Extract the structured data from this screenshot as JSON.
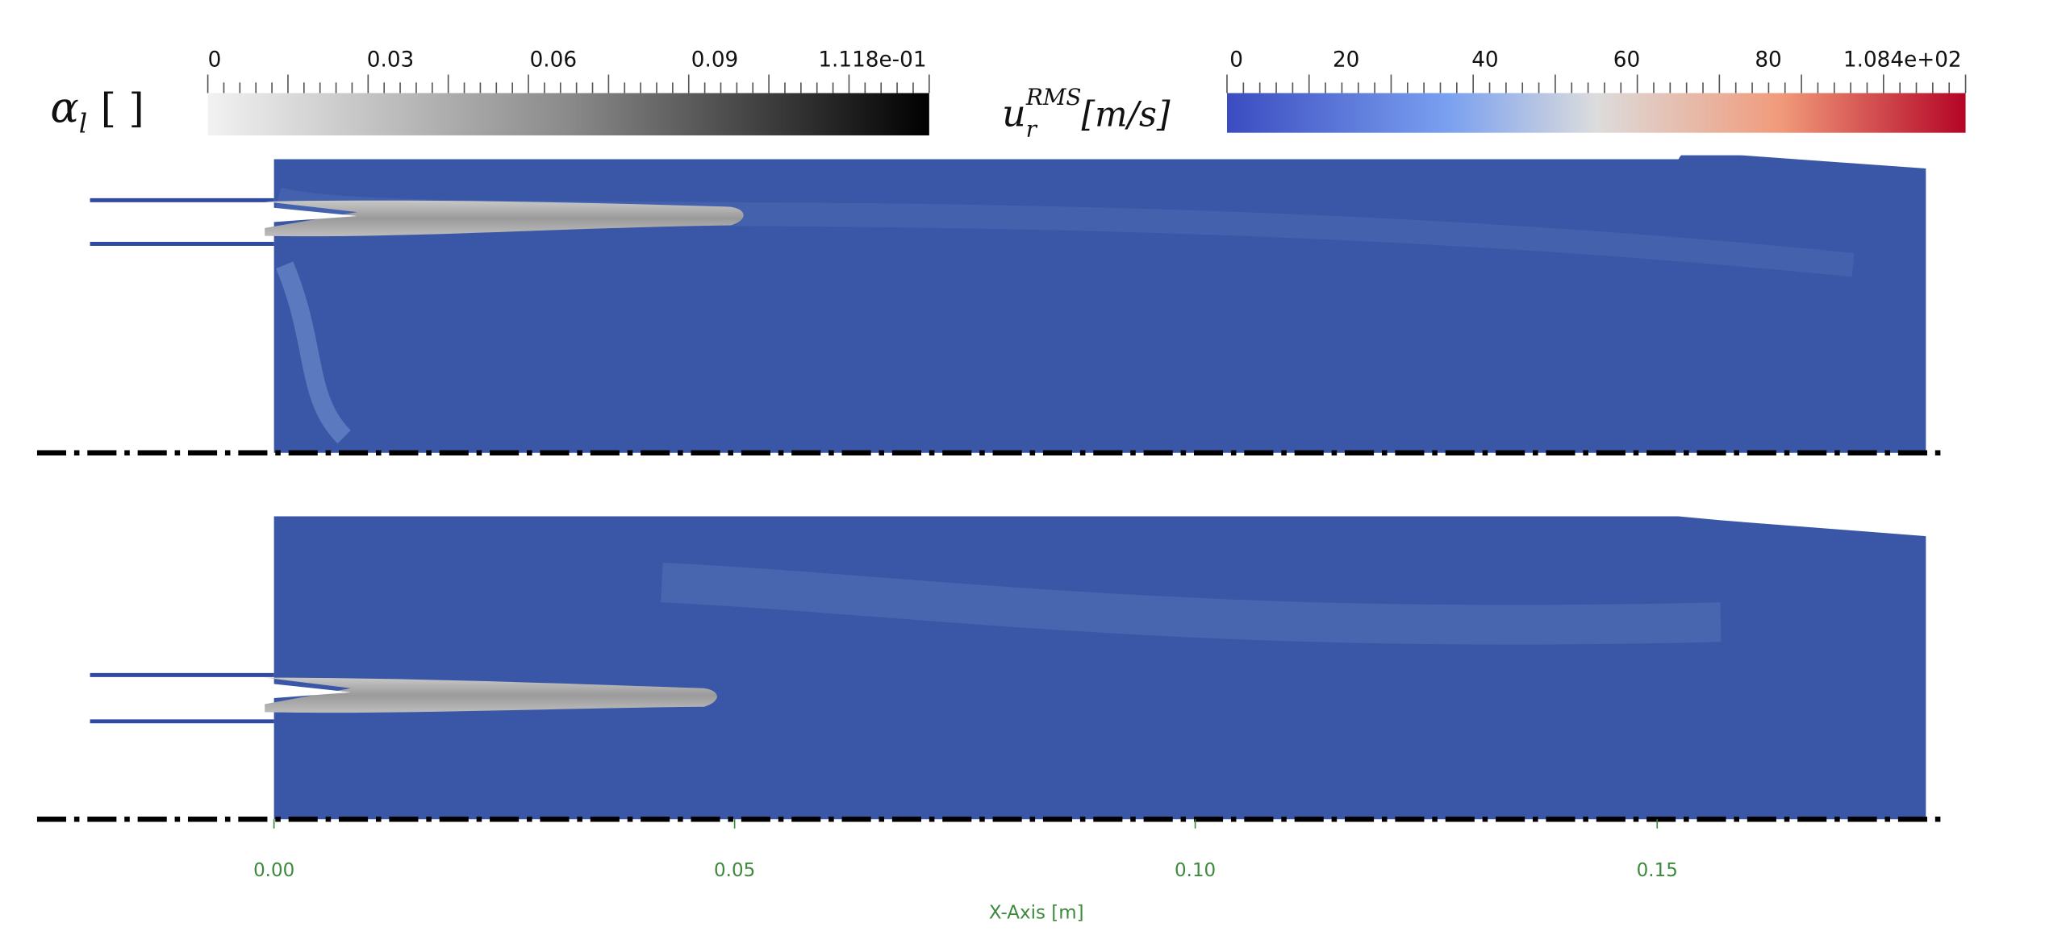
{
  "colorbars": [
    {
      "symbol": "α",
      "subscript": "l",
      "unit": "[ ]",
      "ticks": [
        "0",
        "0.03",
        "0.06",
        "0.09",
        "1.118e-01"
      ]
    },
    {
      "symbol": "u",
      "subscript": "r",
      "superscript": "RMS",
      "unit": "[m/s]",
      "ticks": [
        "0",
        "20",
        "40",
        "60",
        "80",
        "1.084e+02"
      ]
    }
  ],
  "x_axis": {
    "title": "X-Axis  [m]",
    "ticks": [
      "0.00",
      "0.05",
      "0.10",
      "0.15"
    ]
  }
}
